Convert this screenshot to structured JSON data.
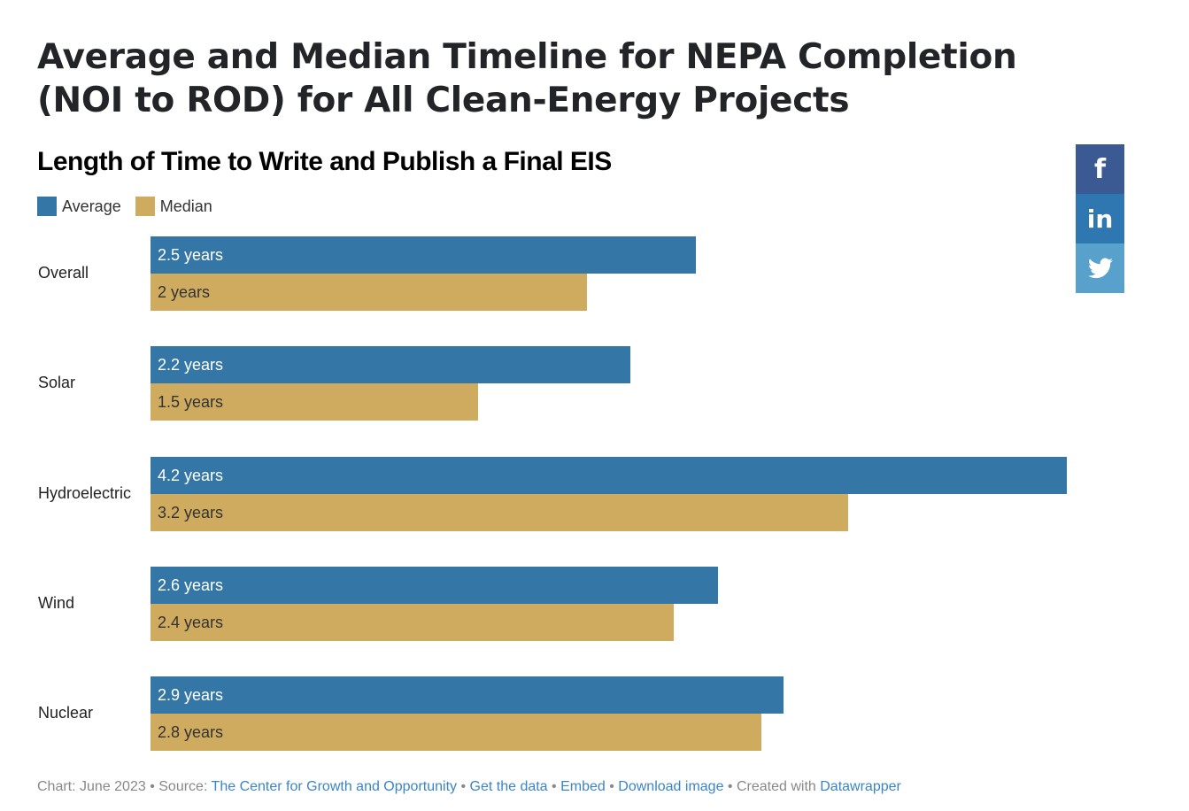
{
  "header": {
    "title": "Average and Median Timeline for NEPA Completion (NOI to ROD) for All Clean-Energy Projects",
    "subtitle": "Length of Time to Write and Publish a Final EIS"
  },
  "legend": [
    {
      "label": "Average",
      "color": "#3476a5"
    },
    {
      "label": "Median",
      "color": "#ceab5f"
    }
  ],
  "rows": [
    {
      "label": "Overall",
      "average_label": "2.5 years",
      "median_label": "2 years"
    },
    {
      "label": "Solar",
      "average_label": "2.2 years",
      "median_label": "1.5 years"
    },
    {
      "label": "Hydroelectric",
      "average_label": "4.2 years",
      "median_label": "3.2 years"
    },
    {
      "label": "Wind",
      "average_label": "2.6 years",
      "median_label": "2.4 years"
    },
    {
      "label": "Nuclear",
      "average_label": "2.9 years",
      "median_label": "2.8 years"
    }
  ],
  "social": [
    {
      "name": "facebook",
      "glyph": "f",
      "color": "#3b5a94"
    },
    {
      "name": "linkedin",
      "glyph": "in",
      "color": "#2f77b0"
    },
    {
      "name": "twitter",
      "glyph": "🐦",
      "color": "#58a1cd"
    }
  ],
  "footer": {
    "chart_date": "Chart: June 2023",
    "sep": " • ",
    "source_prefix": "Source: ",
    "source_link": "The Center for Growth and Opportunity",
    "get_data": "Get the data",
    "embed": "Embed",
    "download": "Download image",
    "created_prefix": "Created with ",
    "datawrapper": "Datawrapper"
  },
  "chart_data": {
    "type": "bar",
    "orientation": "horizontal",
    "title": "Average and Median Timeline for NEPA Completion (NOI to ROD) for All Clean-Energy Projects",
    "subtitle": "Length of Time to Write and Publish a Final EIS",
    "categories": [
      "Overall",
      "Solar",
      "Hydroelectric",
      "Wind",
      "Nuclear"
    ],
    "series": [
      {
        "name": "Average",
        "color": "#3476a5",
        "values": [
          2.5,
          2.2,
          4.2,
          2.6,
          2.9
        ]
      },
      {
        "name": "Median",
        "color": "#ceab5f",
        "values": [
          2.0,
          1.5,
          3.2,
          2.4,
          2.8
        ]
      }
    ],
    "unit": "years",
    "xlabel": "",
    "ylabel": "",
    "xlim": [
      0,
      4.2
    ],
    "grid": false,
    "legend_position": "top-left"
  }
}
